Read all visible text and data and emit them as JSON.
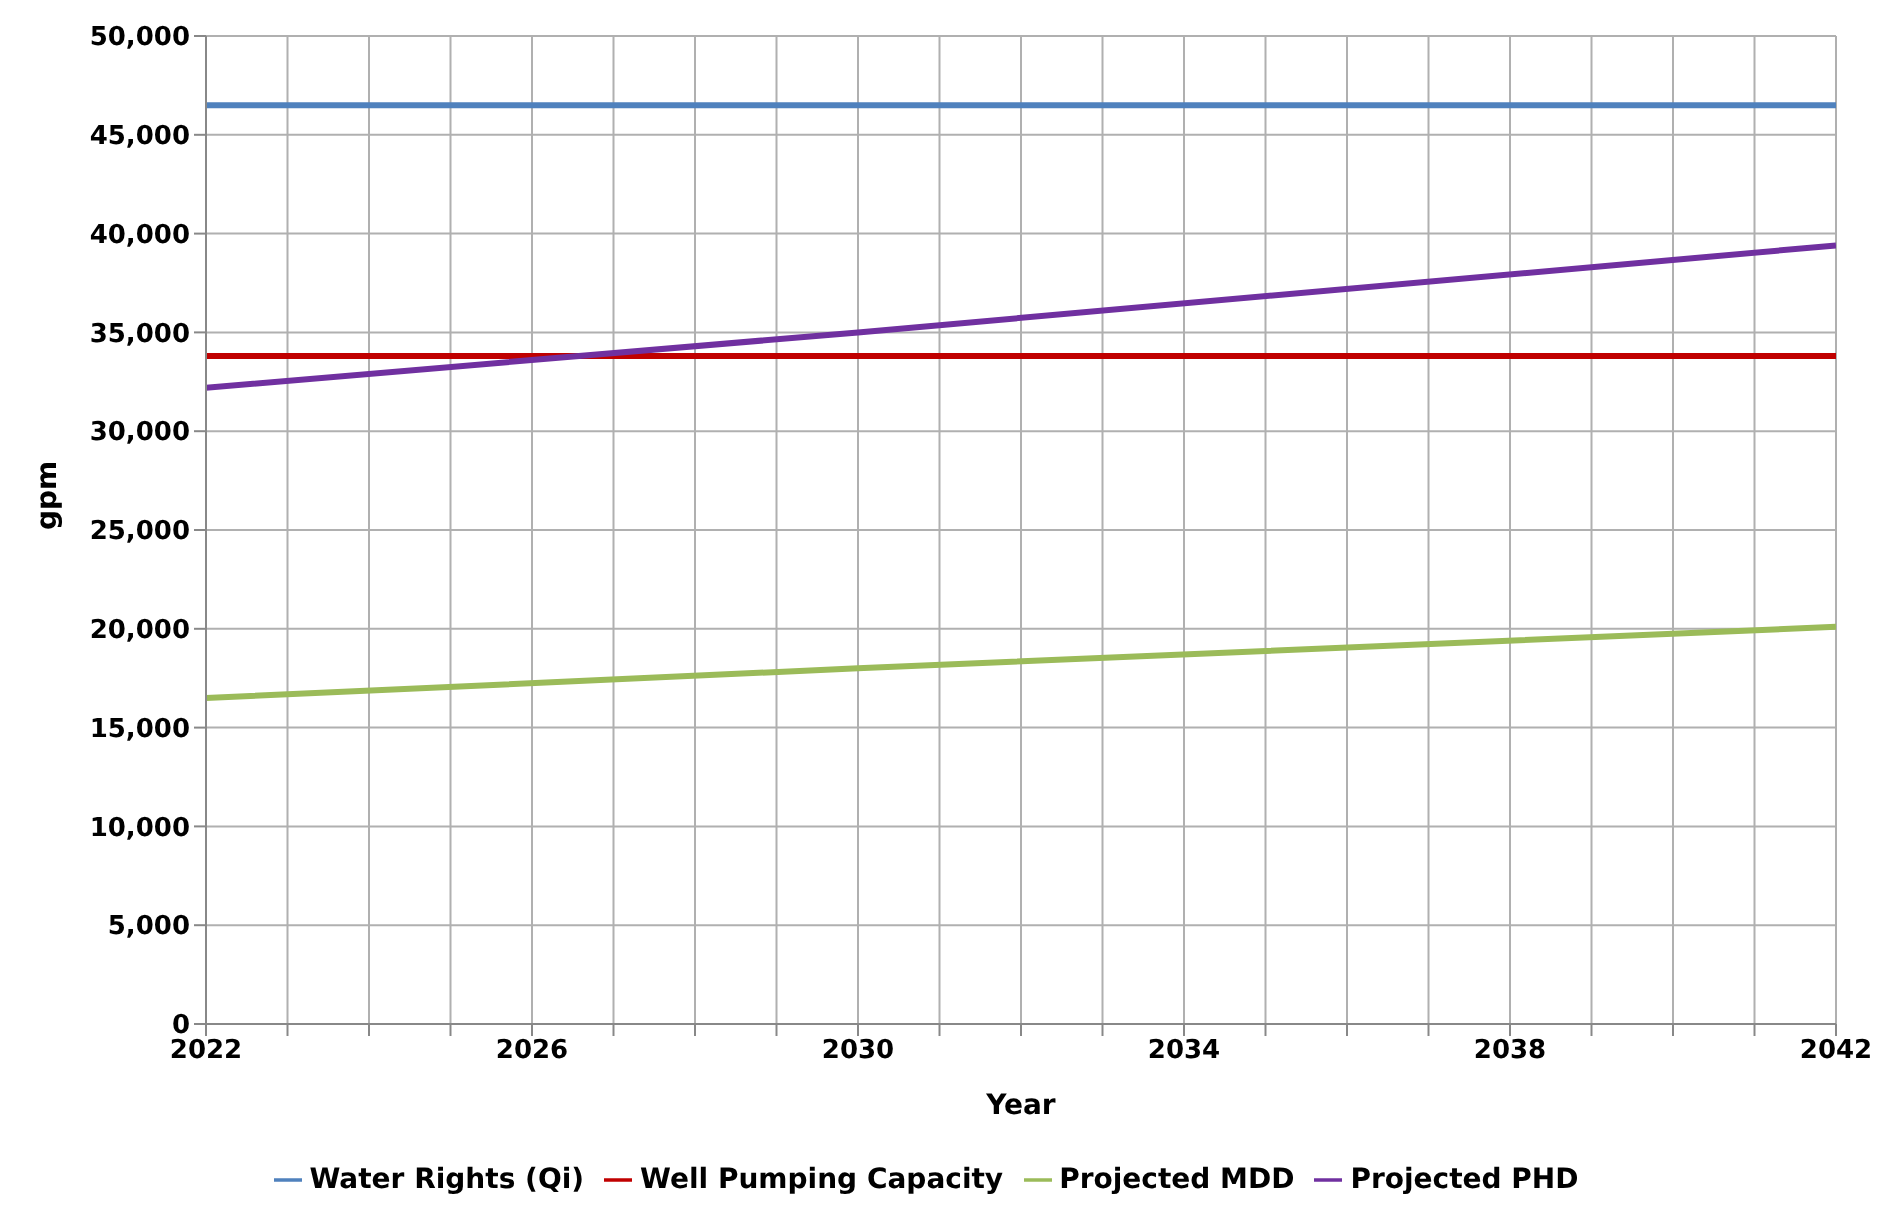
{
  "chart_data": {
    "type": "line",
    "xlabel": "Year",
    "ylabel": "gpm",
    "x": [
      2022,
      2030,
      2042
    ],
    "series": [
      {
        "name": "Water Rights (Qi)",
        "color": "#4f81bd",
        "values": [
          46500,
          46500,
          46500
        ]
      },
      {
        "name": "Well Pumping Capacity",
        "color": "#c00000",
        "values": [
          33800,
          33800,
          33800
        ]
      },
      {
        "name": "Projected MDD",
        "color": "#9bbb59",
        "values": [
          16500,
          18000,
          20100
        ]
      },
      {
        "name": "Projected PHD",
        "color": "#7030a0",
        "values": [
          32200,
          35000,
          39400
        ]
      }
    ],
    "xlim": [
      2022,
      2042
    ],
    "xticks": [
      {
        "value": 2022,
        "label": "2022"
      },
      {
        "value": 2023,
        "label": null
      },
      {
        "value": 2024,
        "label": null
      },
      {
        "value": 2025,
        "label": null
      },
      {
        "value": 2026,
        "label": "2026"
      },
      {
        "value": 2027,
        "label": null
      },
      {
        "value": 2028,
        "label": null
      },
      {
        "value": 2029,
        "label": null
      },
      {
        "value": 2030,
        "label": "2030"
      },
      {
        "value": 2031,
        "label": null
      },
      {
        "value": 2032,
        "label": null
      },
      {
        "value": 2033,
        "label": null
      },
      {
        "value": 2034,
        "label": "2034"
      },
      {
        "value": 2035,
        "label": null
      },
      {
        "value": 2036,
        "label": null
      },
      {
        "value": 2037,
        "label": null
      },
      {
        "value": 2038,
        "label": "2038"
      },
      {
        "value": 2039,
        "label": null
      },
      {
        "value": 2040,
        "label": null
      },
      {
        "value": 2041,
        "label": null
      },
      {
        "value": 2042,
        "label": "2042"
      }
    ],
    "ylim": [
      0,
      50000
    ],
    "yticks": [
      0,
      {
        "value": 5000,
        "label": "5,000"
      },
      {
        "value": 10000,
        "label": "10,000"
      },
      {
        "value": 15000,
        "label": "15,000"
      },
      {
        "value": 20000,
        "label": "20,000"
      },
      {
        "value": 25000,
        "label": "25,000"
      },
      {
        "value": 30000,
        "label": "30,000"
      },
      {
        "value": 35000,
        "label": "35,000"
      },
      {
        "value": 40000,
        "label": "40,000"
      },
      {
        "value": 45000,
        "label": "45,000"
      },
      {
        "value": 50000,
        "label": "50,000"
      }
    ],
    "grid": true,
    "legend": "bottom",
    "marker": "none",
    "line_style": "solid"
  }
}
